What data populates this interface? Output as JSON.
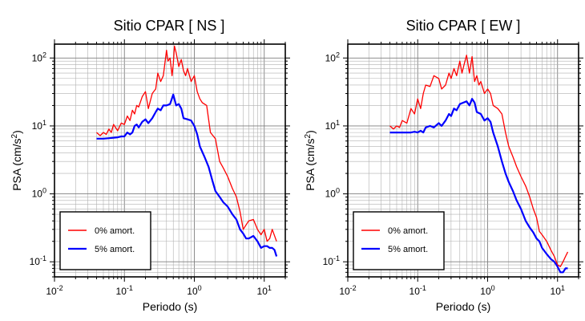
{
  "chart_data": [
    {
      "type": "line",
      "title": "Sitio CPAR [ NS ]",
      "xlabel": "Periodo (s)",
      "ylabel_main": "PSA (cm/s",
      "ylabel_sup": "2",
      "ylabel_close": ")",
      "xscale": "log",
      "yscale": "log",
      "xlim": [
        0.01,
        20
      ],
      "ylim": [
        0.06,
        160
      ],
      "grid": true,
      "legend_position": "bottom-left",
      "x_ticks": [
        {
          "value": 0.01,
          "base": "10",
          "exp": "-2"
        },
        {
          "value": 0.1,
          "base": "10",
          "exp": "-1"
        },
        {
          "value": 1,
          "base": "10",
          "exp": "0"
        },
        {
          "value": 10,
          "base": "10",
          "exp": "1"
        }
      ],
      "y_ticks": [
        {
          "value": 0.1,
          "base": "10",
          "exp": "-1"
        },
        {
          "value": 1,
          "base": "10",
          "exp": "0"
        },
        {
          "value": 10,
          "base": "10",
          "exp": "1"
        },
        {
          "value": 100,
          "base": "10",
          "exp": "2"
        }
      ],
      "series": [
        {
          "name": "0% amort.",
          "color": "#ff0000",
          "x": [
            0.04,
            0.045,
            0.05,
            0.055,
            0.06,
            0.065,
            0.07,
            0.08,
            0.09,
            0.1,
            0.11,
            0.12,
            0.13,
            0.14,
            0.15,
            0.16,
            0.18,
            0.2,
            0.22,
            0.25,
            0.28,
            0.3,
            0.33,
            0.36,
            0.4,
            0.42,
            0.45,
            0.48,
            0.5,
            0.52,
            0.55,
            0.6,
            0.65,
            0.7,
            0.75,
            0.8,
            0.9,
            1.0,
            1.1,
            1.2,
            1.3,
            1.5,
            1.7,
            2.0,
            2.3,
            2.6,
            3.0,
            3.5,
            4.0,
            4.5,
            5.0,
            5.5,
            6.0,
            7.0,
            8.0,
            9.0,
            10.0,
            11.0,
            12.0,
            13.0,
            15.0
          ],
          "y": [
            8.0,
            7.2,
            8.0,
            7.5,
            9.0,
            8.0,
            10.5,
            8.5,
            11.0,
            10.5,
            14.0,
            12.0,
            17.0,
            15.0,
            20.0,
            19.0,
            27.0,
            32.0,
            18.0,
            30.0,
            35.0,
            60.0,
            45.0,
            55.0,
            130.0,
            90.0,
            100.0,
            55.0,
            80.0,
            150.0,
            120.0,
            75.0,
            95.0,
            65.0,
            55.0,
            70.0,
            45.0,
            55.0,
            32.0,
            25.0,
            22.0,
            20.0,
            8.0,
            6.5,
            3.0,
            2.4,
            1.8,
            1.2,
            0.9,
            0.55,
            0.3,
            0.35,
            0.4,
            0.42,
            0.3,
            0.25,
            0.3,
            0.2,
            0.22,
            0.3,
            0.2
          ]
        },
        {
          "name": "5% amort.",
          "color": "#0000ff",
          "x": [
            0.04,
            0.05,
            0.06,
            0.07,
            0.08,
            0.09,
            0.1,
            0.11,
            0.12,
            0.13,
            0.14,
            0.15,
            0.16,
            0.18,
            0.2,
            0.22,
            0.25,
            0.28,
            0.3,
            0.33,
            0.36,
            0.4,
            0.45,
            0.5,
            0.55,
            0.6,
            0.65,
            0.7,
            0.8,
            0.9,
            1.0,
            1.1,
            1.2,
            1.4,
            1.6,
            1.8,
            2.0,
            2.3,
            2.6,
            3.0,
            3.5,
            4.0,
            4.5,
            5.0,
            5.5,
            6.0,
            7.0,
            8.0,
            9.0,
            10.0,
            11.0,
            12.0,
            13.0,
            14.0,
            15.0
          ],
          "y": [
            6.5,
            6.5,
            6.6,
            6.7,
            6.8,
            7.0,
            7.0,
            8.0,
            7.5,
            8.0,
            10.0,
            10.5,
            9.5,
            11.5,
            12.5,
            11.0,
            13.0,
            16.0,
            18.0,
            17.0,
            20.0,
            20.0,
            21.0,
            29.0,
            20.0,
            21.0,
            18.0,
            13.0,
            12.5,
            12.0,
            10.0,
            7.5,
            5.0,
            3.5,
            2.5,
            1.6,
            1.1,
            0.9,
            0.75,
            0.65,
            0.5,
            0.42,
            0.3,
            0.26,
            0.22,
            0.22,
            0.24,
            0.2,
            0.16,
            0.17,
            0.17,
            0.16,
            0.16,
            0.15,
            0.12
          ]
        }
      ]
    },
    {
      "type": "line",
      "title": "Sitio CPAR [ EW ]",
      "xlabel": "Periodo (s)",
      "ylabel_main": "PSA (cm/s",
      "ylabel_sup": "2",
      "ylabel_close": ")",
      "xscale": "log",
      "yscale": "log",
      "xlim": [
        0.01,
        20
      ],
      "ylim": [
        0.06,
        160
      ],
      "grid": true,
      "legend_position": "bottom-left",
      "x_ticks": [
        {
          "value": 0.01,
          "base": "10",
          "exp": "-2"
        },
        {
          "value": 0.1,
          "base": "10",
          "exp": "-1"
        },
        {
          "value": 1,
          "base": "10",
          "exp": "0"
        },
        {
          "value": 10,
          "base": "10",
          "exp": "1"
        }
      ],
      "y_ticks": [
        {
          "value": 0.1,
          "base": "10",
          "exp": "-1"
        },
        {
          "value": 1,
          "base": "10",
          "exp": "0"
        },
        {
          "value": 10,
          "base": "10",
          "exp": "1"
        },
        {
          "value": 100,
          "base": "10",
          "exp": "2"
        }
      ],
      "series": [
        {
          "name": "0% amort.",
          "color": "#ff0000",
          "x": [
            0.04,
            0.045,
            0.05,
            0.055,
            0.06,
            0.07,
            0.08,
            0.09,
            0.1,
            0.11,
            0.12,
            0.13,
            0.15,
            0.17,
            0.2,
            0.22,
            0.25,
            0.28,
            0.3,
            0.33,
            0.36,
            0.4,
            0.43,
            0.46,
            0.5,
            0.55,
            0.6,
            0.65,
            0.7,
            0.75,
            0.8,
            0.9,
            1.0,
            1.1,
            1.2,
            1.4,
            1.6,
            1.8,
            2.0,
            2.3,
            2.6,
            3.0,
            3.5,
            4.0,
            4.5,
            5.0,
            5.5,
            6.0,
            7.0,
            8.0,
            9.0,
            10.0,
            11.0,
            12.0,
            13.0,
            14.0
          ],
          "y": [
            10.0,
            9.0,
            10.0,
            9.5,
            12.0,
            11.0,
            18.0,
            15.0,
            25.0,
            18.0,
            30.0,
            40.0,
            38.0,
            55.0,
            50.0,
            35.0,
            40.0,
            60.0,
            50.0,
            70.0,
            55.0,
            90.0,
            60.0,
            80.0,
            110.0,
            60.0,
            105.0,
            45.0,
            55.0,
            40.0,
            45.0,
            30.0,
            35.0,
            30.0,
            20.0,
            18.0,
            15.0,
            8.0,
            5.0,
            3.5,
            2.5,
            1.8,
            1.3,
            0.9,
            0.6,
            0.45,
            0.28,
            0.25,
            0.2,
            0.15,
            0.12,
            0.09,
            0.085,
            0.1,
            0.12,
            0.14
          ]
        },
        {
          "name": "5% amort.",
          "color": "#0000ff",
          "x": [
            0.04,
            0.05,
            0.06,
            0.07,
            0.08,
            0.09,
            0.1,
            0.11,
            0.12,
            0.13,
            0.15,
            0.17,
            0.2,
            0.22,
            0.25,
            0.28,
            0.3,
            0.33,
            0.36,
            0.4,
            0.45,
            0.5,
            0.55,
            0.6,
            0.65,
            0.7,
            0.8,
            0.9,
            1.0,
            1.1,
            1.2,
            1.4,
            1.6,
            1.8,
            2.0,
            2.3,
            2.6,
            3.0,
            3.5,
            4.0,
            4.5,
            5.0,
            5.5,
            6.0,
            7.0,
            8.0,
            9.0,
            10.0,
            11.0,
            12.0,
            13.0,
            14.0
          ],
          "y": [
            8.0,
            8.0,
            8.0,
            8.0,
            8.0,
            8.2,
            8.0,
            8.5,
            8.0,
            9.5,
            10.0,
            9.5,
            11.0,
            10.0,
            12.0,
            15.0,
            14.0,
            18.0,
            17.0,
            21.0,
            22.0,
            23.0,
            20.0,
            25.0,
            22.0,
            16.0,
            15.0,
            12.0,
            13.0,
            11.5,
            8.0,
            5.0,
            3.0,
            2.0,
            1.5,
            1.1,
            0.8,
            0.6,
            0.4,
            0.32,
            0.27,
            0.22,
            0.2,
            0.16,
            0.13,
            0.11,
            0.1,
            0.085,
            0.07,
            0.07,
            0.08,
            0.08
          ]
        }
      ]
    }
  ]
}
